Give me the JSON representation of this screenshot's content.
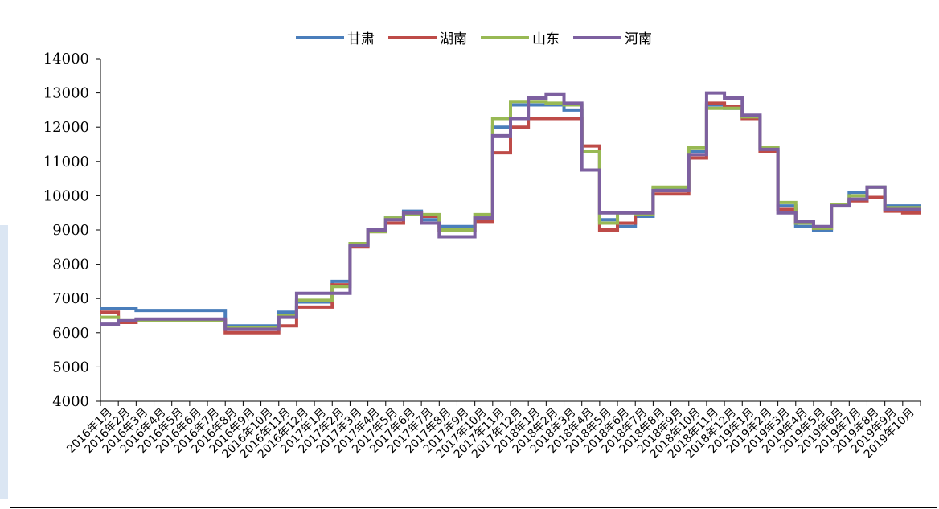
{
  "chart_data": {
    "type": "line",
    "step": true,
    "title": "",
    "xlabel": "",
    "ylabel": "",
    "ylim": [
      4000,
      14000
    ],
    "yticks": [
      4000,
      5000,
      6000,
      7000,
      8000,
      9000,
      10000,
      11000,
      12000,
      13000,
      14000
    ],
    "grid": false,
    "legend_position": "top-center",
    "x_tick_labels": [
      "2016年1月",
      "2016年2月",
      "2016年3月",
      "2016年4月",
      "2016年5月",
      "2016年6月",
      "2016年7月",
      "2016年8月",
      "2016年9月",
      "2016年10月",
      "2016年11月",
      "2016年12月",
      "2017年1月",
      "2017年2月",
      "2017年3月",
      "2017年4月",
      "2017年5月",
      "2017年6月",
      "2017年7月",
      "2017年8月",
      "2017年9月",
      "2017年10月",
      "2017年11月",
      "2017年12月",
      "2018年1月",
      "2018年2月",
      "2018年3月",
      "2018年4月",
      "2018年5月",
      "2018年6月",
      "2018年7月",
      "2018年8月",
      "2018年9月",
      "2018年10月",
      "2018年11月",
      "2018年12月",
      "2019年1月",
      "2019年2月",
      "2019年3月",
      "2019年4月",
      "2019年5月",
      "2019年6月",
      "2019年7月",
      "2019年8月",
      "2019年9月",
      "2019年10月"
    ],
    "series": [
      {
        "name": "甘肃",
        "color": "#4a7ebb",
        "values": [
          6700,
          6700,
          6650,
          6650,
          6650,
          6650,
          6650,
          6200,
          6200,
          6200,
          6600,
          6900,
          6900,
          7500,
          8550,
          9000,
          9350,
          9550,
          9300,
          9100,
          9100,
          9350,
          12000,
          12650,
          12650,
          12650,
          12500,
          11300,
          9300,
          9100,
          9400,
          10200,
          10200,
          11300,
          12650,
          12550,
          12300,
          11400,
          9700,
          9100,
          9000,
          9750,
          10100,
          10250,
          9700,
          9700
        ]
      },
      {
        "name": "湖南",
        "color": "#be4b48",
        "values": [
          6600,
          6300,
          6350,
          6350,
          6350,
          6350,
          6350,
          6000,
          6000,
          6000,
          6200,
          6750,
          6750,
          7400,
          8500,
          8950,
          9200,
          9500,
          9400,
          9000,
          9000,
          9250,
          11250,
          12000,
          12250,
          12250,
          12250,
          11450,
          9000,
          9200,
          9500,
          10050,
          10050,
          11100,
          12700,
          12600,
          12250,
          11300,
          9600,
          9200,
          9050,
          9750,
          9850,
          9950,
          9550,
          9500
        ]
      },
      {
        "name": "山东",
        "color": "#98b954",
        "values": [
          6450,
          6350,
          6350,
          6350,
          6350,
          6350,
          6350,
          6150,
          6150,
          6150,
          6500,
          6950,
          6950,
          7350,
          8600,
          8950,
          9350,
          9450,
          9450,
          9000,
          9000,
          9450,
          12250,
          12750,
          12750,
          12700,
          12650,
          11300,
          9200,
          9500,
          9450,
          10250,
          10250,
          11400,
          12550,
          12550,
          12300,
          11400,
          9800,
          9200,
          9050,
          9750,
          10000,
          10250,
          9650,
          9650
        ]
      },
      {
        "name": "河南",
        "color": "#7d60a0",
        "values": [
          6250,
          6350,
          6400,
          6400,
          6400,
          6400,
          6400,
          6100,
          6100,
          6100,
          6450,
          7150,
          7150,
          7150,
          8550,
          9000,
          9300,
          9500,
          9200,
          8800,
          8800,
          9350,
          11750,
          12250,
          12850,
          12950,
          12700,
          10750,
          9500,
          9500,
          9500,
          10150,
          10150,
          11200,
          13000,
          12850,
          12350,
          11350,
          9500,
          9250,
          9100,
          9700,
          9900,
          10250,
          9600,
          9600
        ]
      }
    ]
  }
}
